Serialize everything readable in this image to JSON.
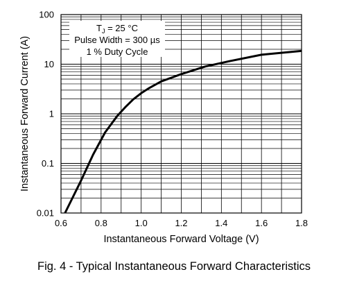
{
  "chart_data": {
    "type": "line",
    "title": "",
    "xlabel": "Instantaneous Forward Voltage (V)",
    "ylabel": "Instantaneous Forward Current (A)",
    "xlim": [
      0.6,
      1.8
    ],
    "ylim": [
      0.01,
      100
    ],
    "yscale": "log",
    "grid": true,
    "x_ticks": [
      "0.6",
      "0.8",
      "1.0",
      "1.2",
      "1.4",
      "1.6",
      "1.8"
    ],
    "y_ticks": [
      "0.01",
      "0.1",
      "1",
      "10",
      "100"
    ],
    "annotations": {
      "line1_prefix": "T",
      "line1_sub": "J",
      "line1_suffix": " = 25 °C",
      "line2": "Pulse Width = 300 µs",
      "line3": "1 % Duty Cycle"
    },
    "series": [
      {
        "name": "",
        "x": [
          0.62,
          0.7,
          0.76,
          0.82,
          0.88,
          0.92,
          0.96,
          1.0,
          1.04,
          1.1,
          1.2,
          1.32,
          1.44,
          1.6,
          1.8
        ],
        "y": [
          0.01,
          0.045,
          0.15,
          0.42,
          0.9,
          1.35,
          1.95,
          2.6,
          3.3,
          4.5,
          6.3,
          9.0,
          11.5,
          15.5,
          18.5
        ]
      }
    ]
  },
  "caption": "Fig. 4 - Typical Instantaneous Forward Characteristics",
  "colors": {
    "line": "#000000",
    "grid": "#000000",
    "background": "#ffffff"
  }
}
